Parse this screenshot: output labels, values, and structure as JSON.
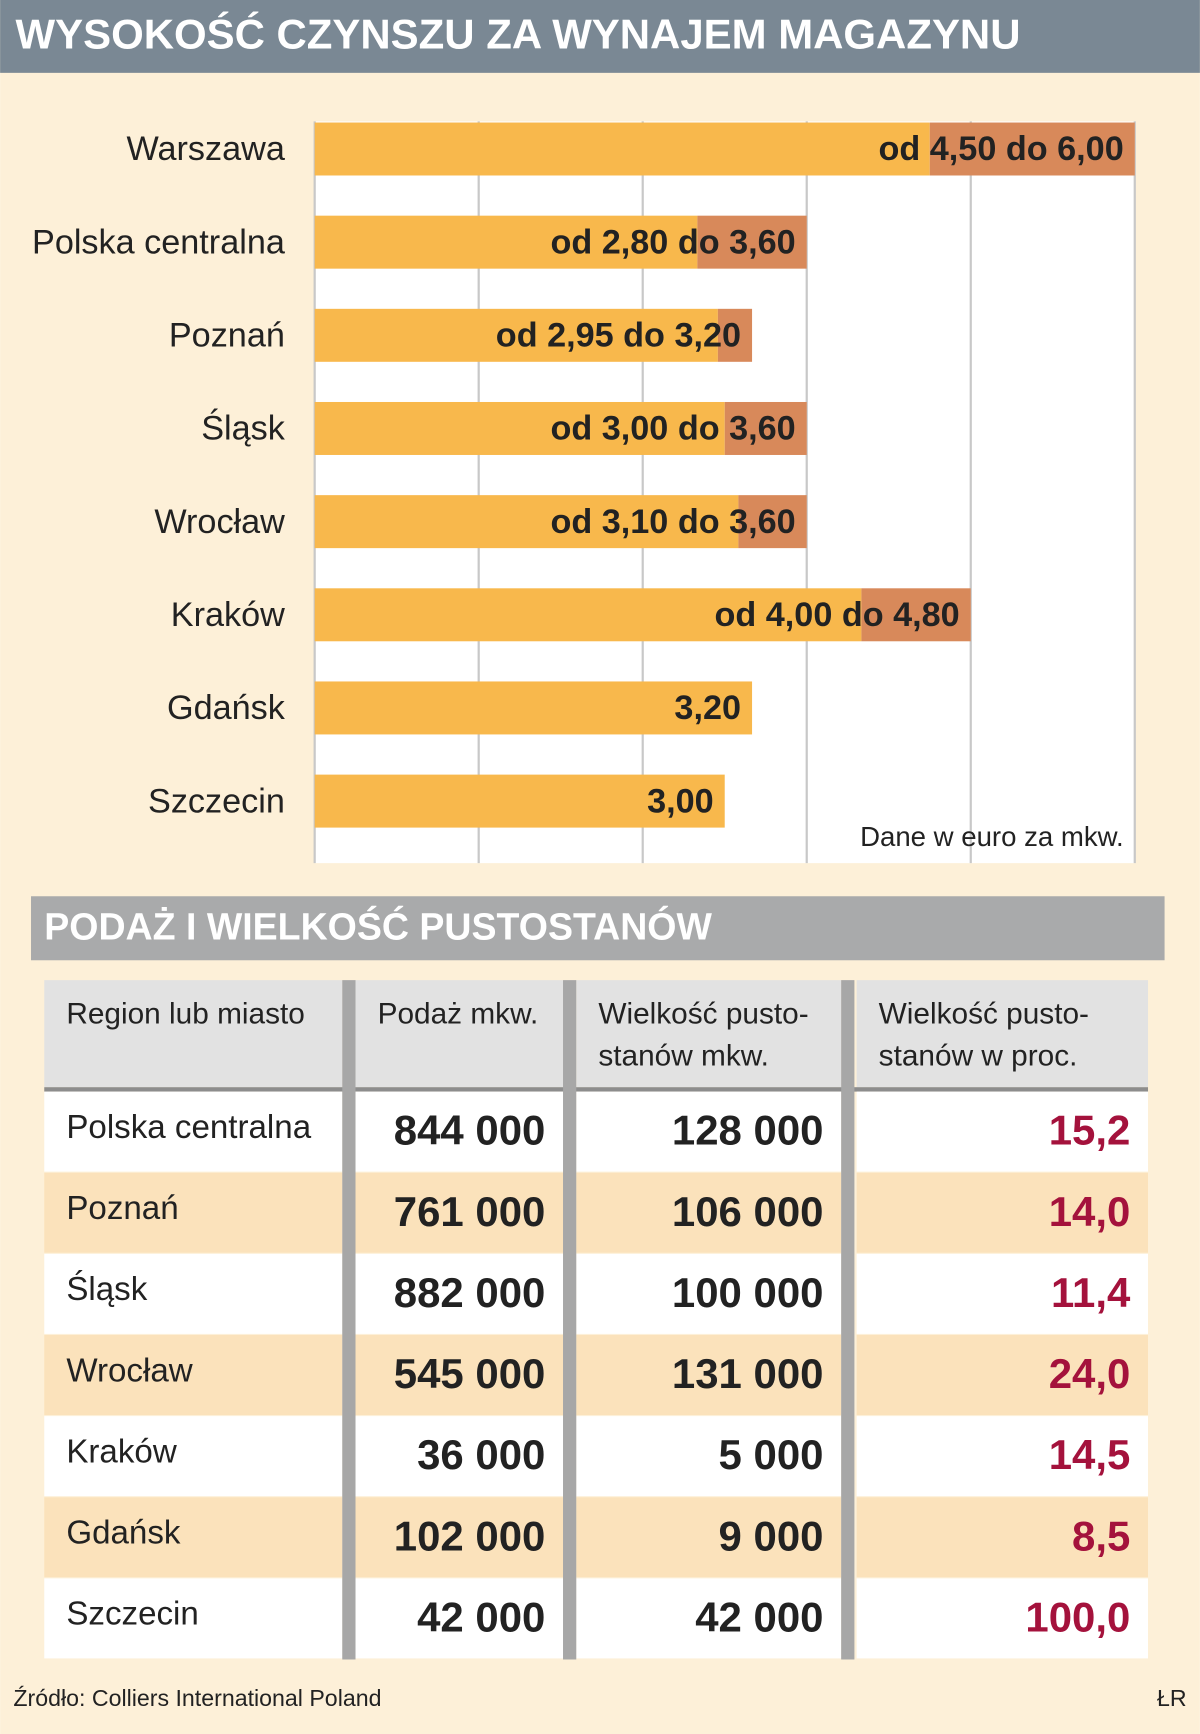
{
  "chart_data": {
    "type": "range_bar",
    "title": "WYSOKOŚĆ CZYNSZU ZA WYNAJEM MAGAZYNU",
    "categories": [
      "Warszawa",
      "Polska centralna",
      "Poznań",
      "Śląsk",
      "Wrocław",
      "Kraków",
      "Gdańsk",
      "Szczecin"
    ],
    "series": [
      {
        "color": "#f8b84c",
        "values": [
          4.5,
          2.8,
          2.95,
          3.0,
          3.1,
          4.0,
          3.2,
          3.0
        ]
      },
      {
        "color": "#d8895a",
        "values": [
          6.0,
          3.6,
          3.2,
          3.6,
          3.6,
          4.8,
          null,
          null
        ]
      }
    ],
    "value_labels": [
      "od 4,50 do 6,00",
      "od 2,80 do 3,60",
      "od 2,95 do 3,20",
      "od 3,00 do 3,60",
      "od 3,10 do 3,60",
      "od 4,00 do 4,80",
      "3,20",
      "3,00"
    ],
    "xlim": [
      0,
      6
    ],
    "xticks": [
      0,
      1.2,
      2.4,
      3.6,
      4.8,
      6
    ],
    "grid": true,
    "note": "Dane w euro za mkw."
  },
  "table": {
    "title": "PODAŻ I WIELKOŚĆ PUSTOSTANÓW",
    "header": [
      [
        "Region lub miasto"
      ],
      [
        "Podaż mkw."
      ],
      [
        "Wielkość pusto-",
        "stanów mkw."
      ],
      [
        "Wielkość pusto-",
        "stanów w proc."
      ]
    ],
    "rows": [
      [
        "Polska centralna",
        "844 000",
        "128 000",
        "15,2"
      ],
      [
        "Poznań",
        "761 000",
        "106 000",
        "14,0"
      ],
      [
        "Śląsk",
        "882 000",
        "100 000",
        "11,4"
      ],
      [
        "Wrocław",
        "545 000",
        "131 000",
        "24,0"
      ],
      [
        "Kraków",
        "36 000",
        "5 000",
        "14,5"
      ],
      [
        "Gdańsk",
        "102 000",
        "9 000",
        "8,5"
      ],
      [
        "Szczecin",
        "42 000",
        "42 000",
        "100,0"
      ]
    ]
  },
  "footer": {
    "source": "Źródło: Colliers International Poland",
    "author": "ŁR"
  }
}
